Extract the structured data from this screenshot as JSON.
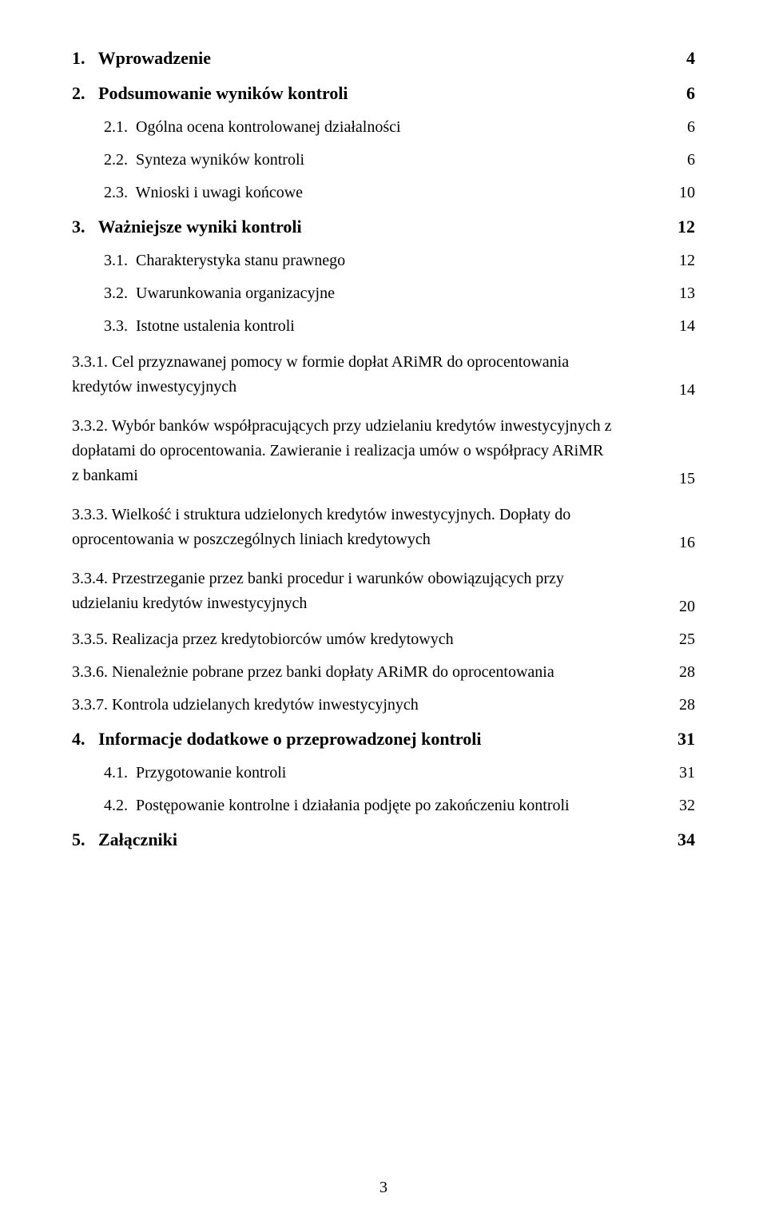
{
  "page_number": "3",
  "colors": {
    "text": "#000000",
    "background": "#ffffff"
  },
  "typography": {
    "font_family": "Times New Roman",
    "body_fontsize": 20,
    "heading_fontsize": 22,
    "pagenum_fontsize": 20,
    "line_height": 1.55
  },
  "entries": [
    {
      "num": "1.",
      "title": "Wprowadzenie",
      "page": "4",
      "style": "bold"
    },
    {
      "num": "2.",
      "title": "Podsumowanie wyników kontroli",
      "page": "6",
      "style": "bold"
    },
    {
      "num": "2.1.",
      "title": "Ogólna ocena kontrolowanej działalności",
      "page": "6",
      "style": "tabbed"
    },
    {
      "num": "2.2.",
      "title": "Synteza wyników kontroli",
      "page": "6",
      "style": "tabbed"
    },
    {
      "num": "2.3.",
      "title": "Wnioski i uwagi końcowe",
      "page": "10",
      "style": "tabbed"
    },
    {
      "num": "3.",
      "title": "Ważniejsze wyniki kontroli",
      "page": "12",
      "style": "bold"
    },
    {
      "num": "3.1.",
      "title": "Charakterystyka stanu prawnego",
      "page": "12",
      "style": "tabbed"
    },
    {
      "num": "3.2.",
      "title": "Uwarunkowania organizacyjne",
      "page": "13",
      "style": "tabbed"
    },
    {
      "num": "3.3.",
      "title": "Istotne ustalenia kontroli",
      "page": "14",
      "style": "tabbed"
    },
    {
      "num": "3.3.1.",
      "title_l1": "3.3.1. Cel przyznawanej pomocy w formie dopłat ARiMR do oprocentowania",
      "title_l2": "kredytów inwestycyjnych",
      "page": "14",
      "style": "multiline"
    },
    {
      "num": "3.3.2.",
      "title_l1": "3.3.2. Wybór banków współpracujących przy udzielaniu kredytów inwestycyjnych z",
      "title_l2": "dopłatami do oprocentowania. Zawieranie i realizacja umów o współpracy ARiMR",
      "title_l3": "z bankami",
      "page": "15",
      "style": "multiline3"
    },
    {
      "num": "3.3.3.",
      "title_l1": "3.3.3. Wielkość i struktura udzielonych kredytów inwestycyjnych. Dopłaty do",
      "title_l2": "oprocentowania w poszczególnych liniach kredytowych",
      "page": "16",
      "style": "multiline"
    },
    {
      "num": "3.3.4.",
      "title_l1": "3.3.4. Przestrzeganie przez banki procedur i warunków obowiązujących przy",
      "title_l2": "udzielaniu kredytów inwestycyjnych",
      "page": "20",
      "style": "multiline"
    },
    {
      "num": "3.3.5.",
      "title": "3.3.5. Realizacja przez kredytobiorców umów kredytowych",
      "page": "25",
      "style": "flush"
    },
    {
      "num": "3.3.6.",
      "title": "3.3.6. Nienależnie pobrane przez banki dopłaty ARiMR do oprocentowania",
      "page": "28",
      "style": "flush"
    },
    {
      "num": "3.3.7.",
      "title": "3.3.7. Kontrola udzielanych kredytów inwestycyjnych",
      "page": "28",
      "style": "flush"
    },
    {
      "num": "4.",
      "title": "Informacje dodatkowe o przeprowadzonej kontroli",
      "page": "31",
      "style": "bold"
    },
    {
      "num": "4.1.",
      "title": "Przygotowanie kontroli",
      "page": "31",
      "style": "tabbed"
    },
    {
      "num": "4.2.",
      "title": "Postępowanie kontrolne i działania podjęte po zakończeniu kontroli",
      "page": "32",
      "style": "tabbed"
    },
    {
      "num": "5.",
      "title": "Załączniki",
      "page": "34",
      "style": "bold"
    }
  ]
}
